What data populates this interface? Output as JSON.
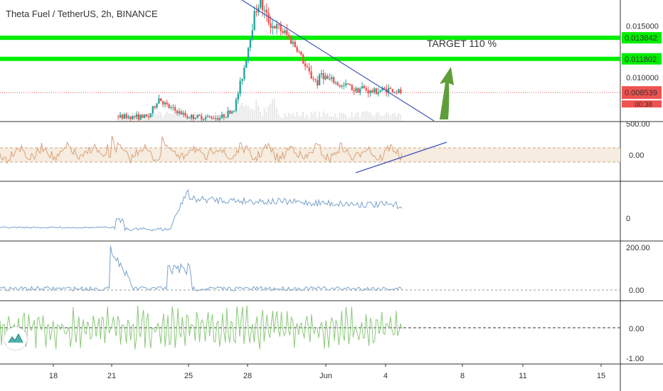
{
  "title": "Theta Fuel / TetherUS, 2h, BINANCE",
  "annotation": "TARGET 110 %",
  "colors": {
    "up": "#26a69a",
    "down": "#ef5350",
    "green_level": "#00ee00",
    "trendline": "#3f51b5",
    "arrow": "#5d9e3a",
    "rsi": "#d9a27a",
    "osc1": "#7aa2cc",
    "osc2": "#7aa2cc",
    "osc3": "#8bc97a",
    "current_price": "#ef5350"
  },
  "chart_data": [
    {
      "type": "candlestick",
      "pane": "price",
      "title": "Theta Fuel / TetherUS, 2h, BINANCE",
      "y_ticks": [
        "0.015000",
        "0.010000"
      ],
      "ylim": [
        0.0058,
        0.0175
      ],
      "levels": [
        {
          "label": "0.013842",
          "value": 0.013842,
          "color": "#00ee00"
        },
        {
          "label": "0.011802",
          "value": 0.011802,
          "color": "#00ee00"
        }
      ],
      "current_price": {
        "label": "0.008539",
        "value": 0.008539
      },
      "countdown_label": "00:38",
      "series_shape": [
        [
          0,
          0.0062
        ],
        [
          15,
          0.0062
        ],
        [
          20,
          0.008
        ],
        [
          24,
          0.0072
        ],
        [
          28,
          0.0068
        ],
        [
          34,
          0.0062
        ],
        [
          50,
          0.0061
        ],
        [
          57,
          0.0069
        ],
        [
          60,
          0.0093
        ],
        [
          62,
          0.011
        ],
        [
          64,
          0.013
        ],
        [
          66,
          0.0152
        ],
        [
          68,
          0.0168
        ],
        [
          70,
          0.0172
        ],
        [
          73,
          0.0158
        ],
        [
          76,
          0.015
        ],
        [
          80,
          0.0146
        ],
        [
          84,
          0.0139
        ],
        [
          88,
          0.0128
        ],
        [
          90,
          0.012
        ],
        [
          92,
          0.011
        ],
        [
          95,
          0.0101
        ],
        [
          98,
          0.0095
        ],
        [
          100,
          0.0104
        ],
        [
          103,
          0.0098
        ],
        [
          106,
          0.0096
        ],
        [
          110,
          0.0091
        ],
        [
          113,
          0.0093
        ],
        [
          116,
          0.0088
        ],
        [
          120,
          0.009
        ],
        [
          124,
          0.0086
        ],
        [
          128,
          0.0087
        ],
        [
          132,
          0.0089
        ],
        [
          136,
          0.0087
        ],
        [
          140,
          0.0085
        ]
      ]
    },
    {
      "type": "line",
      "pane": "rsi",
      "y_ticks": [
        "500.00",
        "0.00"
      ],
      "trendline": "rising"
    },
    {
      "type": "line",
      "pane": "oscillator-1",
      "y_ticks": [
        "0"
      ]
    },
    {
      "type": "line",
      "pane": "oscillator-2",
      "y_ticks": [
        "200.00",
        "0.00"
      ]
    },
    {
      "type": "line",
      "pane": "oscillator-3",
      "y_ticks": [
        "0.00",
        "-1.00"
      ]
    }
  ],
  "x_axis_labels": [
    {
      "label": "18"
    },
    {
      "label": "21"
    },
    {
      "label": "25"
    },
    {
      "label": "28"
    },
    {
      "label": "Jun"
    },
    {
      "label": "4"
    },
    {
      "label": "8"
    },
    {
      "label": "11"
    },
    {
      "label": "15"
    }
  ],
  "icons": {
    "logo": "tradingview-logo-icon",
    "arrow": "target-arrow-icon"
  }
}
